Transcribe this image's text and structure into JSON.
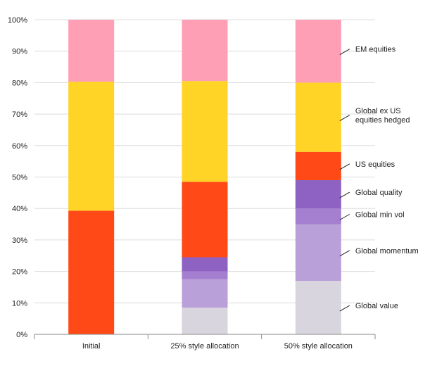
{
  "chart_data": {
    "type": "bar",
    "stacked": true,
    "categories": [
      "Initial",
      "25% style allocation",
      "50% style allocation"
    ],
    "ylim": [
      0,
      100
    ],
    "yticks": [
      "0%",
      "10%",
      "20%",
      "30%",
      "40%",
      "50%",
      "60%",
      "70%",
      "80%",
      "90%",
      "100%"
    ],
    "grid": true,
    "legend_position": "right",
    "series": [
      {
        "name": "Global value",
        "color": "#d8d5df",
        "values": [
          0,
          8.5,
          17
        ]
      },
      {
        "name": "Global momentum",
        "color": "#b9a0d9",
        "values": [
          0,
          9,
          18
        ]
      },
      {
        "name": "Global min vol",
        "color": "#a47fcf",
        "values": [
          0,
          2.5,
          5
        ]
      },
      {
        "name": "Global quality",
        "color": "#8e62c2",
        "values": [
          0,
          4.5,
          9
        ]
      },
      {
        "name": "US equities",
        "color": "#ff4a17",
        "values": [
          39.3,
          24,
          9
        ]
      },
      {
        "name": "Global ex US equities hedged",
        "label_lines": [
          "Global ex US",
          "equities hedged"
        ],
        "color": "#ffd426",
        "values": [
          41,
          32,
          22
        ]
      },
      {
        "name": "EM equities",
        "color": "#ff9fb5",
        "values": [
          19.7,
          19.5,
          20
        ]
      }
    ]
  }
}
